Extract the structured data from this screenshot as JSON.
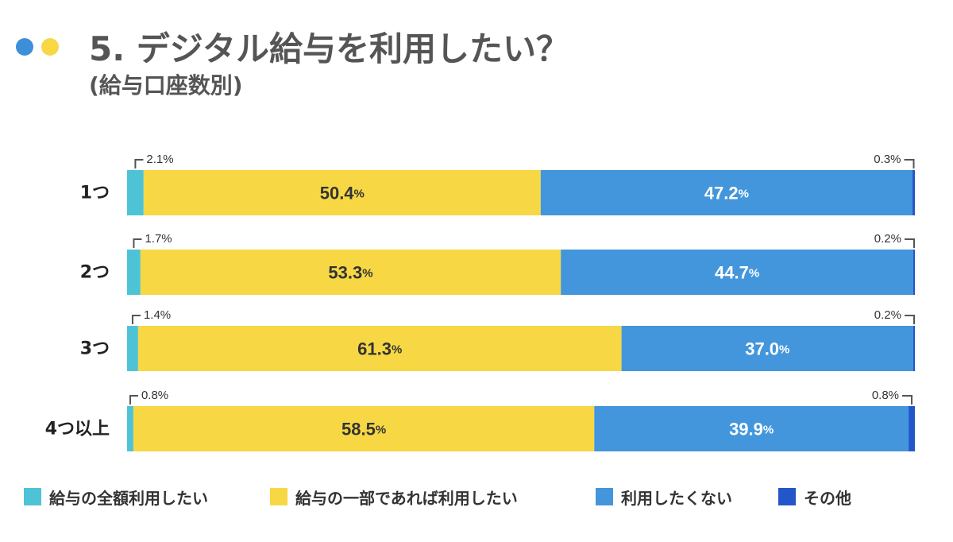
{
  "header": {
    "title": "5. デジタル給与を利用したい？",
    "subtitle": "(給与口座数別)",
    "dot_colors": [
      "#3E8FD9",
      "#F7D844"
    ]
  },
  "chart_data": {
    "type": "bar",
    "orientation": "horizontal",
    "stacked": true,
    "percent": true,
    "title": "5. デジタル給与を利用したい？",
    "subtitle": "(給与口座数別)",
    "categories": [
      "1つ",
      "2つ",
      "3つ",
      "4つ以上"
    ],
    "series": [
      {
        "name": "給与の全額利用したい",
        "color": "#4FC3D6",
        "values": [
          2.1,
          1.7,
          1.4,
          0.8
        ]
      },
      {
        "name": "給与の一部であれば利用したい",
        "color": "#F7D844",
        "values": [
          50.4,
          53.3,
          61.3,
          58.5
        ]
      },
      {
        "name": "利用したくない",
        "color": "#4396DC",
        "values": [
          47.2,
          44.7,
          37.0,
          39.9
        ]
      },
      {
        "name": "その他",
        "color": "#2357C9",
        "values": [
          0.3,
          0.2,
          0.2,
          0.8
        ]
      }
    ],
    "legend_position": "bottom",
    "grid": false
  }
}
